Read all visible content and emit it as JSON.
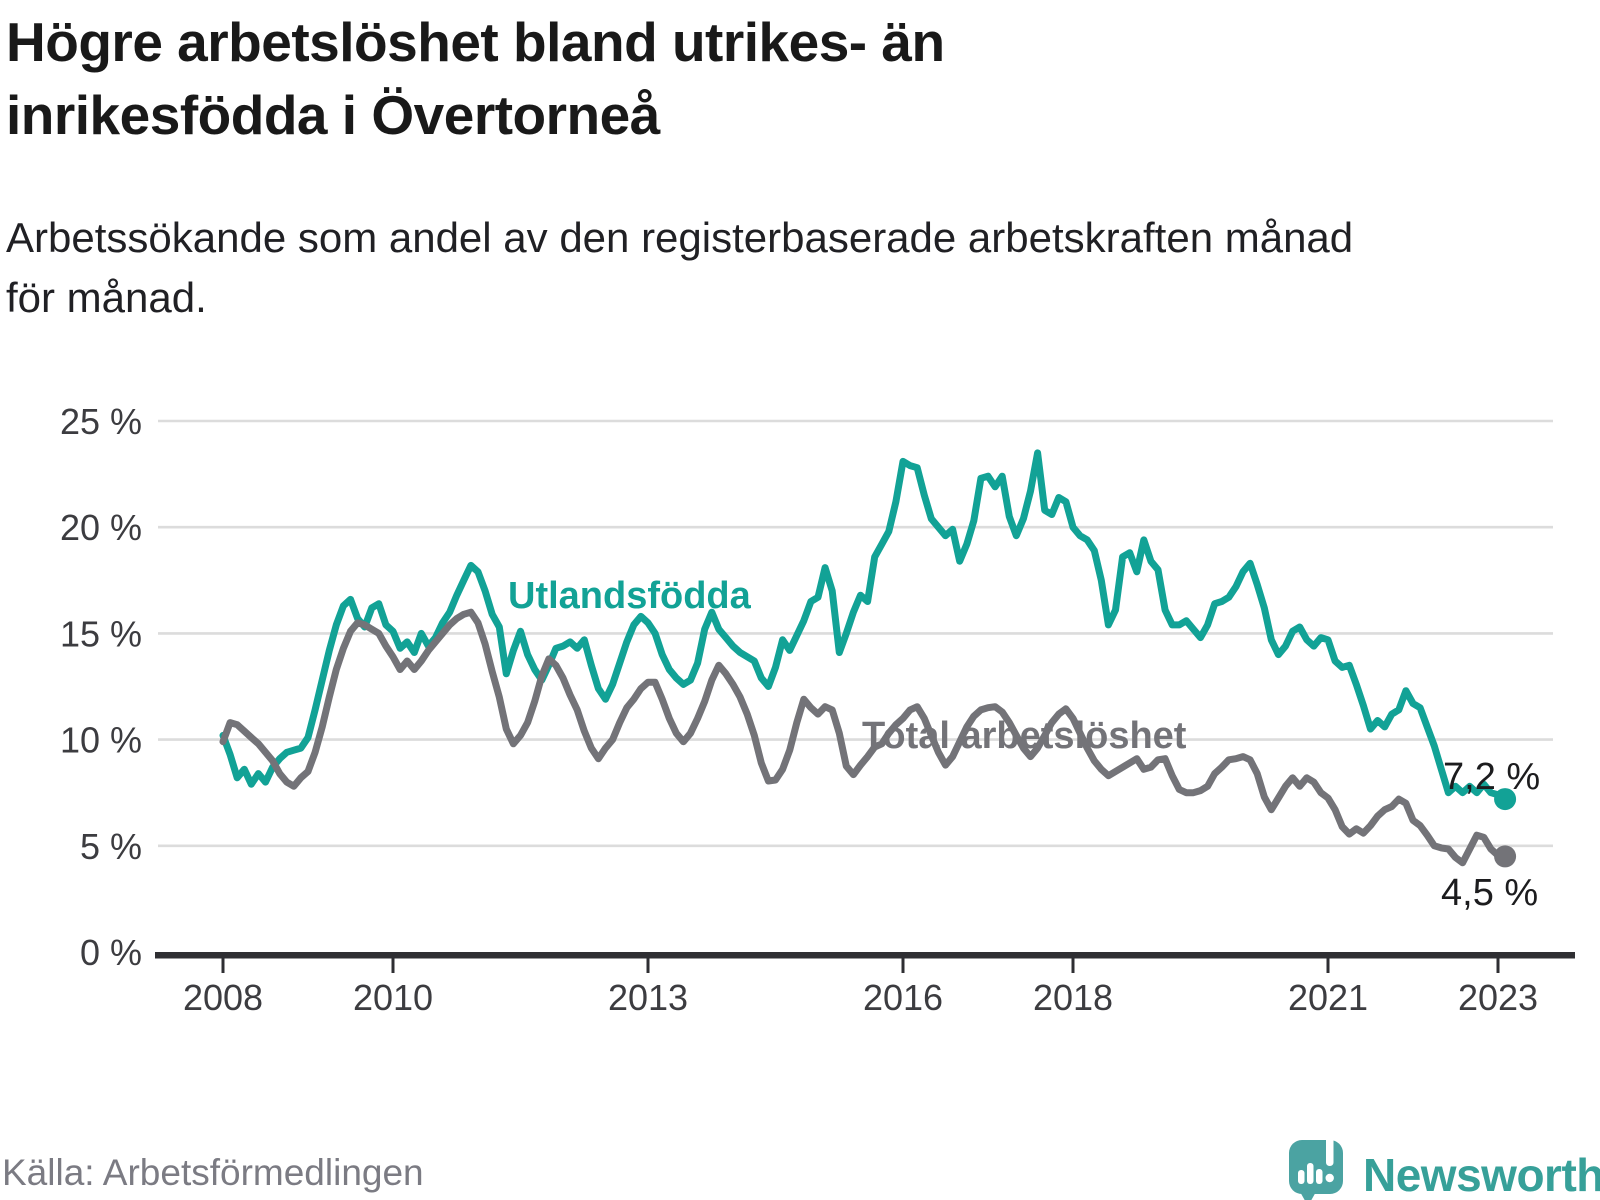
{
  "header": {
    "title_line1": "Högre arbetslöshet bland utrikes- än",
    "title_line2": "inrikesfödda i Övertorneå",
    "subtitle_line1": "Arbetssökande som andel av den registerbaserade arbetskraften månad",
    "subtitle_line2": "för månad."
  },
  "chart_data": {
    "type": "line",
    "title": "Högre arbetslöshet bland utrikes- än inrikesfödda i Övertorneå",
    "subtitle": "Arbetssökande som andel av den registerbaserade arbetskraften månad för månad.",
    "x_start_year": 2008,
    "x_unit": "month",
    "x_tick_years": [
      2008,
      2010,
      2013,
      2016,
      2018,
      2021,
      2023
    ],
    "ylim": [
      0,
      25
    ],
    "grid": "horizontal",
    "legend_position": "inline-labels",
    "y_ticks": [
      {
        "label": "25 %",
        "value": 25
      },
      {
        "label": "20 %",
        "value": 20
      },
      {
        "label": "15 %",
        "value": 15
      },
      {
        "label": "10 %",
        "value": 10
      },
      {
        "label": "5 %",
        "value": 5
      },
      {
        "label": "0 %",
        "value": 0
      }
    ],
    "series": [
      {
        "id": "utlandsfodda",
        "name": "Utlandsfödda",
        "color": "#12a296",
        "end_label": "7,2 %",
        "end_value": 7.2,
        "values": [
          10.2,
          9.3,
          8.2,
          8.6,
          7.9,
          8.4,
          8.0,
          8.7,
          9.1,
          9.4,
          9.5,
          9.6,
          10.1,
          11.4,
          12.8,
          14.2,
          15.4,
          16.3,
          16.6,
          15.7,
          15.3,
          16.2,
          16.4,
          15.4,
          15.1,
          14.3,
          14.6,
          14.1,
          15.0,
          14.4,
          14.8,
          15.5,
          16.0,
          16.8,
          17.5,
          18.2,
          17.9,
          17.0,
          15.9,
          15.3,
          13.1,
          14.2,
          15.1,
          14.0,
          13.3,
          12.8,
          13.5,
          14.3,
          14.4,
          14.6,
          14.3,
          14.7,
          13.5,
          12.4,
          11.9,
          12.6,
          13.6,
          14.6,
          15.4,
          15.8,
          15.5,
          15.0,
          14.0,
          13.3,
          12.9,
          12.6,
          12.8,
          13.6,
          15.2,
          16.0,
          15.2,
          14.8,
          14.4,
          14.1,
          13.9,
          13.7,
          12.9,
          12.5,
          13.4,
          14.7,
          14.2,
          14.9,
          15.6,
          16.5,
          16.7,
          18.1,
          17.0,
          14.1,
          15.0,
          16.0,
          16.8,
          16.5,
          18.6,
          19.2,
          19.8,
          21.2,
          23.1,
          22.9,
          22.8,
          21.5,
          20.4,
          20.0,
          19.6,
          19.9,
          18.4,
          19.2,
          20.3,
          22.3,
          22.4,
          21.9,
          22.4,
          20.5,
          19.6,
          20.4,
          21.7,
          23.5,
          20.8,
          20.6,
          21.4,
          21.2,
          20.0,
          19.6,
          19.4,
          18.9,
          17.5,
          15.4,
          16.1,
          18.6,
          18.8,
          17.9,
          19.4,
          18.4,
          18.0,
          16.1,
          15.4,
          15.4,
          15.6,
          15.2,
          14.8,
          15.4,
          16.4,
          16.5,
          16.7,
          17.2,
          17.9,
          18.3,
          17.3,
          16.2,
          14.7,
          14.0,
          14.4,
          15.1,
          15.3,
          14.7,
          14.4,
          14.8,
          14.7,
          13.7,
          13.4,
          13.5,
          12.6,
          11.6,
          10.5,
          10.9,
          10.6,
          11.2,
          11.4,
          12.3,
          11.7,
          11.5,
          10.6,
          9.7,
          8.6,
          7.5,
          7.8,
          7.5,
          7.8,
          7.5,
          7.9,
          7.5,
          7.4,
          7.2
        ]
      },
      {
        "id": "total",
        "name": "Total arbetslöshet",
        "color": "#737378",
        "end_label": "4,5 %",
        "end_value": 4.5,
        "values": [
          9.9,
          10.8,
          10.7,
          10.4,
          10.1,
          9.8,
          9.4,
          9.0,
          8.4,
          8.0,
          7.8,
          8.2,
          8.5,
          9.4,
          10.6,
          12.0,
          13.3,
          14.3,
          15.1,
          15.5,
          15.4,
          15.2,
          15.0,
          14.4,
          13.9,
          13.3,
          13.7,
          13.3,
          13.7,
          14.2,
          14.6,
          15.0,
          15.4,
          15.7,
          15.9,
          16.0,
          15.5,
          14.5,
          13.2,
          12.0,
          10.5,
          9.8,
          10.2,
          10.8,
          11.8,
          13.0,
          13.8,
          13.5,
          12.9,
          12.1,
          11.4,
          10.4,
          9.6,
          9.1,
          9.6,
          10.0,
          10.8,
          11.5,
          11.9,
          12.4,
          12.7,
          12.7,
          11.9,
          11.0,
          10.3,
          9.9,
          10.3,
          11.0,
          11.8,
          12.8,
          13.5,
          13.1,
          12.6,
          12.0,
          11.2,
          10.2,
          8.9,
          8.05,
          8.1,
          8.6,
          9.5,
          10.8,
          11.9,
          11.5,
          11.2,
          11.55,
          11.4,
          10.3,
          8.75,
          8.35,
          8.8,
          9.2,
          9.65,
          9.8,
          10.3,
          10.7,
          11.0,
          11.4,
          11.55,
          11.0,
          10.2,
          9.4,
          8.8,
          9.2,
          9.9,
          10.6,
          11.1,
          11.4,
          11.5,
          11.55,
          11.3,
          10.8,
          10.2,
          9.6,
          9.2,
          9.6,
          10.2,
          10.8,
          11.2,
          11.45,
          11.0,
          10.3,
          9.6,
          9.0,
          8.6,
          8.3,
          8.5,
          8.7,
          8.9,
          9.1,
          8.6,
          8.7,
          9.05,
          9.1,
          8.3,
          7.65,
          7.5,
          7.5,
          7.6,
          7.8,
          8.4,
          8.7,
          9.05,
          9.1,
          9.2,
          9.05,
          8.4,
          7.3,
          6.7,
          7.25,
          7.8,
          8.2,
          7.8,
          8.2,
          8.0,
          7.5,
          7.25,
          6.7,
          5.9,
          5.55,
          5.8,
          5.6,
          5.95,
          6.4,
          6.7,
          6.85,
          7.2,
          7.0,
          6.2,
          5.95,
          5.5,
          5.0,
          4.9,
          4.85,
          4.45,
          4.2,
          4.85,
          5.5,
          5.4,
          4.85,
          4.55,
          4.5
        ]
      }
    ]
  },
  "footer": {
    "source": "Källa: Arbetsförmedlingen",
    "brand": "Newsworthy",
    "brand_color": "#37a099",
    "logo_color": "#4ba3a2"
  }
}
